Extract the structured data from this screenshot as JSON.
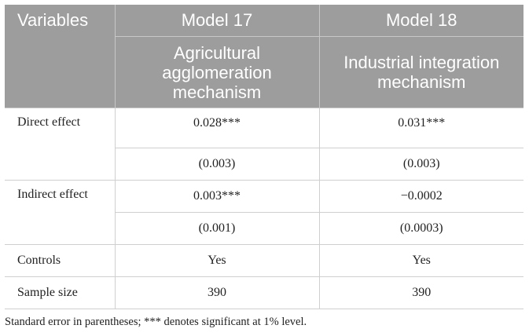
{
  "header": {
    "variables": "Variables",
    "model1": "Model 17",
    "model2": "Model 18",
    "sub1": "Agricultural agglomeration mechanism",
    "sub2": "Industrial integration mechanism"
  },
  "rows": [
    {
      "label": "Direct effect",
      "m1": "0.028***",
      "m2": "0.031***",
      "m1_se": "(0.003)",
      "m2_se": "(0.003)"
    },
    {
      "label": "Indirect effect",
      "m1": "0.003***",
      "m2": "−0.0002",
      "m1_se": "(0.001)",
      "m2_se": "(0.0003)"
    },
    {
      "label": "Controls",
      "m1": "Yes",
      "m2": "Yes"
    },
    {
      "label": "Sample size",
      "m1": "390",
      "m2": "390"
    }
  ],
  "note": "Standard error in parentheses; *** denotes significant at 1% level."
}
